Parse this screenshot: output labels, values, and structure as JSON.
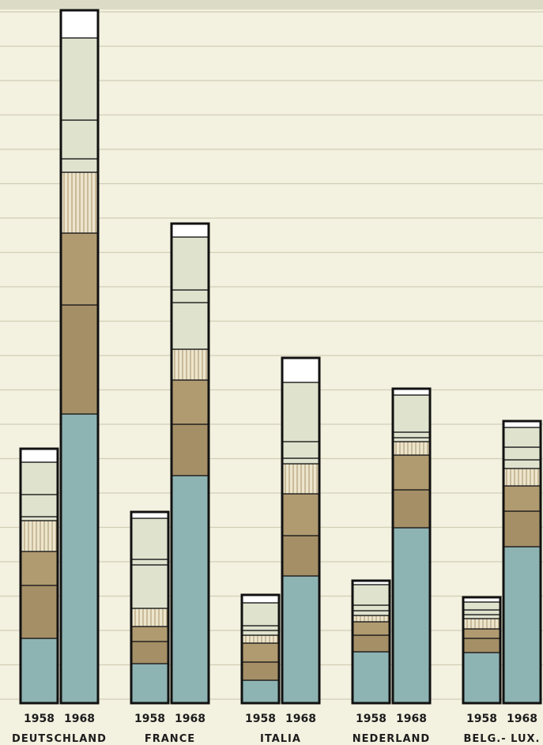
{
  "chart_data": {
    "type": "bar",
    "stacked": true,
    "grid": true,
    "ylim": [
      0,
      880
    ],
    "layer_colors": {
      "base": "#8eb3b3",
      "mid_dark": "#a58f66",
      "mid_light": "#b09a70",
      "hatch": "#ece5cc",
      "light": "#dfe2cd",
      "top": "#ffffff"
    },
    "categories": [
      "DEUTSCHLAND",
      "FRANCE",
      "ITALIA",
      "NEDERLAND",
      "BELG.- LUX."
    ],
    "years": [
      "1958",
      "1968"
    ],
    "groups": [
      {
        "country": "DEUTSCHLAND",
        "bars": [
          {
            "year": "1958",
            "segments": [
              {
                "layer": "base",
                "value": 82
              },
              {
                "layer": "mid_dark",
                "value": 67
              },
              {
                "layer": "mid_light",
                "value": 43
              },
              {
                "layer": "hatch",
                "value": 39
              },
              {
                "layer": "light",
                "value": 5
              },
              {
                "layer": "light",
                "value": 28
              },
              {
                "layer": "light",
                "value": 41
              },
              {
                "layer": "top",
                "value": 17
              }
            ]
          },
          {
            "year": "1968",
            "segments": [
              {
                "layer": "base",
                "value": 366
              },
              {
                "layer": "mid_dark",
                "value": 138
              },
              {
                "layer": "mid_light",
                "value": 91
              },
              {
                "layer": "hatch",
                "value": 77
              },
              {
                "layer": "light",
                "value": 17
              },
              {
                "layer": "light",
                "value": 49
              },
              {
                "layer": "light",
                "value": 104
              },
              {
                "layer": "top",
                "value": 35
              }
            ]
          }
        ]
      },
      {
        "country": "FRANCE",
        "bars": [
          {
            "year": "1958",
            "segments": [
              {
                "layer": "base",
                "value": 50
              },
              {
                "layer": "mid_dark",
                "value": 28
              },
              {
                "layer": "mid_light",
                "value": 19
              },
              {
                "layer": "hatch",
                "value": 23
              },
              {
                "layer": "light",
                "value": 55
              },
              {
                "layer": "light",
                "value": 7
              },
              {
                "layer": "light",
                "value": 52
              },
              {
                "layer": "top",
                "value": 8
              }
            ]
          },
          {
            "year": "1968",
            "segments": [
              {
                "layer": "base",
                "value": 288
              },
              {
                "layer": "mid_dark",
                "value": 65
              },
              {
                "layer": "mid_light",
                "value": 56
              },
              {
                "layer": "hatch",
                "value": 39
              },
              {
                "layer": "light",
                "value": 59
              },
              {
                "layer": "light",
                "value": 16
              },
              {
                "layer": "light",
                "value": 67
              },
              {
                "layer": "top",
                "value": 17
              }
            ]
          }
        ]
      },
      {
        "country": "ITALIA",
        "bars": [
          {
            "year": "1958",
            "segments": [
              {
                "layer": "base",
                "value": 29
              },
              {
                "layer": "mid_dark",
                "value": 23
              },
              {
                "layer": "mid_light",
                "value": 24
              },
              {
                "layer": "hatch",
                "value": 10
              },
              {
                "layer": "light",
                "value": 6
              },
              {
                "layer": "light",
                "value": 6
              },
              {
                "layer": "light",
                "value": 29
              },
              {
                "layer": "top",
                "value": 10
              }
            ]
          },
          {
            "year": "1968",
            "segments": [
              {
                "layer": "base",
                "value": 161
              },
              {
                "layer": "mid_dark",
                "value": 51
              },
              {
                "layer": "mid_light",
                "value": 53
              },
              {
                "layer": "hatch",
                "value": 38
              },
              {
                "layer": "light",
                "value": 7
              },
              {
                "layer": "light",
                "value": 21
              },
              {
                "layer": "light",
                "value": 75
              },
              {
                "layer": "top",
                "value": 31
              }
            ]
          }
        ]
      },
      {
        "country": "NEDERLAND",
        "bars": [
          {
            "year": "1958",
            "segments": [
              {
                "layer": "base",
                "value": 65
              },
              {
                "layer": "mid_dark",
                "value": 21
              },
              {
                "layer": "mid_light",
                "value": 17
              },
              {
                "layer": "hatch",
                "value": 8
              },
              {
                "layer": "light",
                "value": 6
              },
              {
                "layer": "light",
                "value": 7
              },
              {
                "layer": "light",
                "value": 26
              },
              {
                "layer": "top",
                "value": 5
              }
            ]
          },
          {
            "year": "1968",
            "segments": [
              {
                "layer": "base",
                "value": 222
              },
              {
                "layer": "mid_dark",
                "value": 48
              },
              {
                "layer": "mid_light",
                "value": 44
              },
              {
                "layer": "hatch",
                "value": 17
              },
              {
                "layer": "light",
                "value": 5
              },
              {
                "layer": "light",
                "value": 7
              },
              {
                "layer": "light",
                "value": 47
              },
              {
                "layer": "top",
                "value": 8
              }
            ]
          }
        ]
      },
      {
        "country": "BELG.- LUX.",
        "bars": [
          {
            "year": "1958",
            "segments": [
              {
                "layer": "base",
                "value": 64
              },
              {
                "layer": "mid_dark",
                "value": 18
              },
              {
                "layer": "mid_light",
                "value": 12
              },
              {
                "layer": "hatch",
                "value": 13
              },
              {
                "layer": "light",
                "value": 5
              },
              {
                "layer": "light",
                "value": 6
              },
              {
                "layer": "light",
                "value": 10
              },
              {
                "layer": "top",
                "value": 6
              }
            ]
          },
          {
            "year": "1968",
            "segments": [
              {
                "layer": "base",
                "value": 198
              },
              {
                "layer": "mid_dark",
                "value": 45
              },
              {
                "layer": "mid_light",
                "value": 32
              },
              {
                "layer": "hatch",
                "value": 22
              },
              {
                "layer": "light",
                "value": 11
              },
              {
                "layer": "light",
                "value": 16
              },
              {
                "layer": "light",
                "value": 25
              },
              {
                "layer": "top",
                "value": 8
              }
            ]
          }
        ]
      }
    ]
  }
}
